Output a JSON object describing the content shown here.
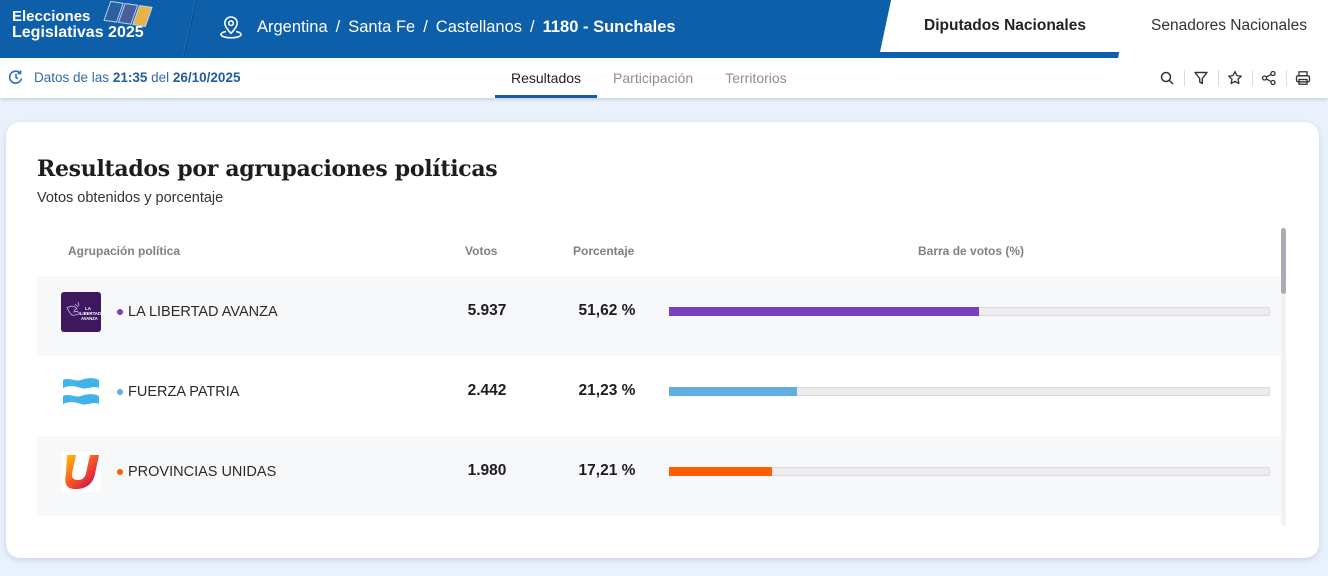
{
  "header": {
    "brand_line1": "Elecciones",
    "brand_line2": "Legislativas 2025",
    "brand_colors": {
      "bar": "#0c5fa8"
    },
    "location_icon": "map-pin-icon",
    "breadcrumb": [
      "Argentina",
      "Santa Fe",
      "Castellanos",
      "1180 - Sunchales"
    ],
    "breadcrumb_separator": "/",
    "tabs": [
      {
        "label": "Diputados Nacionales",
        "active": true
      },
      {
        "label": "Senadores Nacionales",
        "active": false
      }
    ]
  },
  "subbar": {
    "updated_icon": "refresh-clock-icon",
    "updated_prefix": "Datos de las",
    "updated_time": "21:35",
    "updated_mid": "del",
    "updated_date": "26/10/2025",
    "nav_tabs": [
      {
        "label": "Resultados",
        "active": true
      },
      {
        "label": "Participación",
        "active": false
      },
      {
        "label": "Territorios",
        "active": false
      }
    ],
    "tools": [
      "search-icon",
      "filter-icon",
      "star-icon",
      "share-icon",
      "print-icon"
    ]
  },
  "results": {
    "title": "Resultados por agrupaciones políticas",
    "subtitle": "Votos obtenidos y porcentaje",
    "columns": [
      "Agrupación política",
      "Votos",
      "Porcentaje",
      "Barra de votos (%)"
    ],
    "rows": [
      {
        "name": "LA LIBERTAD AVANZA",
        "votes": "5.937",
        "percent_label": "51,62 %",
        "percent": 51.62,
        "color": "#7a3fbc",
        "logo": "la-libertad-avanza-logo"
      },
      {
        "name": "FUERZA PATRIA",
        "votes": "2.442",
        "percent_label": "21,23 %",
        "percent": 21.23,
        "color": "#62aee0",
        "logo": "fuerza-patria-logo"
      },
      {
        "name": "PROVINCIAS UNIDAS",
        "votes": "1.980",
        "percent_label": "17,21 %",
        "percent": 17.21,
        "color": "#ff5e00",
        "logo": "provincias-unidas-logo"
      }
    ]
  }
}
